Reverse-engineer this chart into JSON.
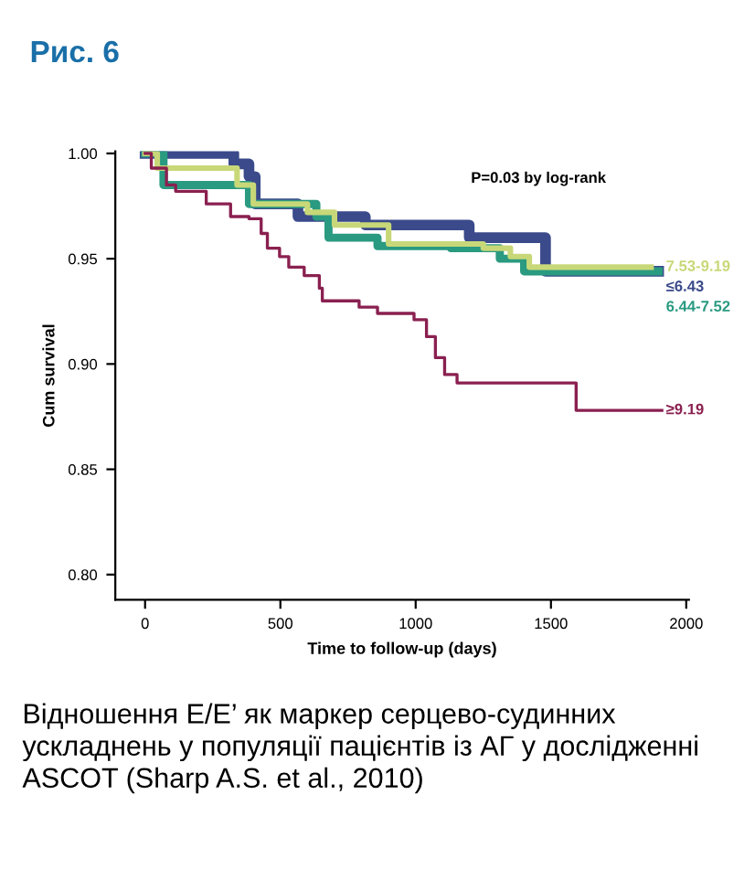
{
  "chart_data": {
    "type": "step",
    "title": "Рис. 6",
    "xlabel": "Time to follow-up (days)",
    "ylabel": "Cum survival",
    "annotations": [
      "P=0.03 by log-rank",
      "Відношення E/E’ як маркер серцево-судинних ускладнень у популяції пацієнтів із АГ у дослідженні ASCOT (Sharp A.S. et al., 2010)"
    ],
    "xlim": [
      -110,
      2010
    ],
    "xticks": [
      0,
      500,
      1000,
      1500,
      2000
    ],
    "ylim": [
      0.788,
      1.001
    ],
    "yticks": [
      {
        "value": 0.8,
        "label": "0.80"
      },
      {
        "value": 0.85,
        "label": "0.85"
      },
      {
        "value": 0.9,
        "label": "0.90"
      },
      {
        "value": 0.95,
        "label": "0.95"
      },
      {
        "value": 1.0,
        "label": "1.00"
      }
    ],
    "grid": false,
    "legend": false,
    "series": [
      {
        "name": "≤6.43",
        "color": "#3a4a8a",
        "x": [
          0,
          328,
          384,
          407,
          565,
          814,
          1198,
          1480,
          1898
        ],
        "values": [
          1.0,
          0.995,
          0.989,
          0.976,
          0.97,
          0.966,
          0.96,
          0.944,
          0.944
        ]
      },
      {
        "name": "6.44-7.52",
        "color": "#2a9a80",
        "x": [
          0,
          68,
          384,
          633,
          678,
          859,
          1130,
          1311,
          1401,
          1898
        ],
        "values": [
          1.0,
          0.985,
          0.976,
          0.97,
          0.96,
          0.956,
          0.955,
          0.95,
          0.944,
          0.944
        ]
      },
      {
        "name": "7.53-9.19",
        "color": "#c8d878",
        "x": [
          0,
          45,
          340,
          400,
          600,
          700,
          900,
          1250,
          1350,
          1420,
          1870
        ],
        "values": [
          1.0,
          0.993,
          0.985,
          0.976,
          0.972,
          0.966,
          0.957,
          0.955,
          0.951,
          0.946,
          0.946
        ]
      },
      {
        "name": "≥9.19",
        "color": "#8a2050",
        "x": [
          0,
          23,
          79,
          113,
          226,
          316,
          384,
          429,
          452,
          497,
          531,
          588,
          644,
          655,
          791,
          859,
          994,
          1040,
          1073,
          1107,
          1153,
          1593,
          1910
        ],
        "values": [
          1.0,
          0.993,
          0.985,
          0.982,
          0.976,
          0.97,
          0.969,
          0.962,
          0.955,
          0.951,
          0.946,
          0.942,
          0.936,
          0.93,
          0.927,
          0.924,
          0.921,
          0.913,
          0.903,
          0.895,
          0.891,
          0.878,
          0.878
        ]
      }
    ]
  }
}
